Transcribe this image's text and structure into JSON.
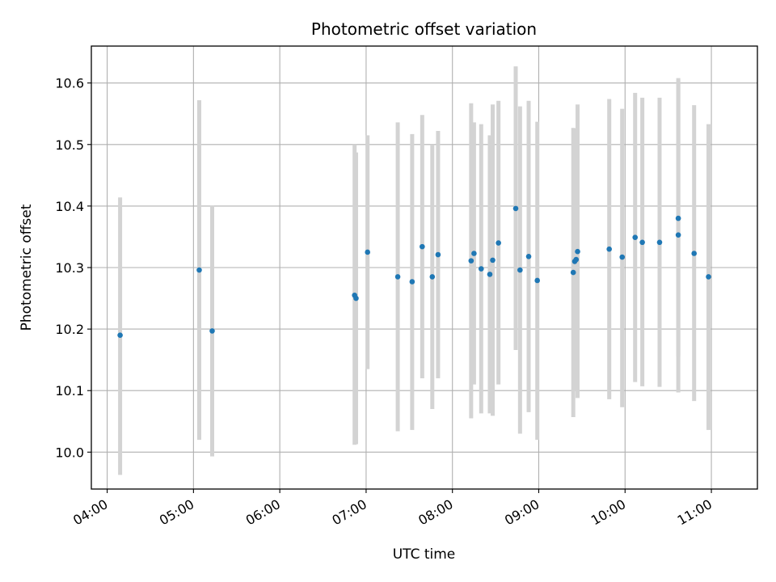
{
  "chart_data": {
    "type": "scatter",
    "title": "Photometric offset variation",
    "xlabel": "UTC time",
    "ylabel": "Photometric offset",
    "x_unit": "HH:MM",
    "xlim": [
      "03:49",
      "11:32"
    ],
    "ylim": [
      9.94,
      10.66
    ],
    "xticks": [
      "04:00",
      "05:00",
      "06:00",
      "07:00",
      "08:00",
      "09:00",
      "10:00",
      "11:00"
    ],
    "yticks": [
      10.0,
      10.1,
      10.2,
      10.3,
      10.4,
      10.5,
      10.6
    ],
    "grid": true,
    "legend": "none",
    "colors": {
      "point": "#1f77b4",
      "errorbar": "#d3d3d3",
      "grid": "#b0b0b0",
      "axes": "#000000"
    },
    "points": [
      {
        "x": "04:09",
        "y": 10.19,
        "ylow": 9.963,
        "yhigh": 10.414
      },
      {
        "x": "05:04",
        "y": 10.296,
        "ylow": 10.02,
        "yhigh": 10.572
      },
      {
        "x": "05:13",
        "y": 10.197,
        "ylow": 9.993,
        "yhigh": 10.401
      },
      {
        "x": "06:52",
        "y": 10.255,
        "ylow": 10.012,
        "yhigh": 10.5
      },
      {
        "x": "06:53",
        "y": 10.25,
        "ylow": 10.013,
        "yhigh": 10.487
      },
      {
        "x": "07:01",
        "y": 10.325,
        "ylow": 10.135,
        "yhigh": 10.515
      },
      {
        "x": "07:22",
        "y": 10.285,
        "ylow": 10.034,
        "yhigh": 10.536
      },
      {
        "x": "07:32",
        "y": 10.277,
        "ylow": 10.036,
        "yhigh": 10.517
      },
      {
        "x": "07:39",
        "y": 10.334,
        "ylow": 10.12,
        "yhigh": 10.548
      },
      {
        "x": "07:46",
        "y": 10.285,
        "ylow": 10.07,
        "yhigh": 10.5
      },
      {
        "x": "07:50",
        "y": 10.321,
        "ylow": 10.12,
        "yhigh": 10.522
      },
      {
        "x": "08:13",
        "y": 10.311,
        "ylow": 10.055,
        "yhigh": 10.567
      },
      {
        "x": "08:15",
        "y": 10.323,
        "ylow": 10.11,
        "yhigh": 10.536
      },
      {
        "x": "08:20",
        "y": 10.298,
        "ylow": 10.063,
        "yhigh": 10.533
      },
      {
        "x": "08:26",
        "y": 10.289,
        "ylow": 10.063,
        "yhigh": 10.515
      },
      {
        "x": "08:28",
        "y": 10.312,
        "ylow": 10.059,
        "yhigh": 10.565
      },
      {
        "x": "08:32",
        "y": 10.34,
        "ylow": 10.11,
        "yhigh": 10.571
      },
      {
        "x": "08:44",
        "y": 10.396,
        "ylow": 10.166,
        "yhigh": 10.627
      },
      {
        "x": "08:47",
        "y": 10.296,
        "ylow": 10.03,
        "yhigh": 10.562
      },
      {
        "x": "08:53",
        "y": 10.318,
        "ylow": 10.065,
        "yhigh": 10.571
      },
      {
        "x": "08:59",
        "y": 10.279,
        "ylow": 10.02,
        "yhigh": 10.537
      },
      {
        "x": "09:24",
        "y": 10.292,
        "ylow": 10.057,
        "yhigh": 10.527
      },
      {
        "x": "09:25",
        "y": 10.31,
        "ylow": 10.1,
        "yhigh": 10.52
      },
      {
        "x": "09:26",
        "y": 10.313,
        "ylow": 10.1,
        "yhigh": 10.526
      },
      {
        "x": "09:27",
        "y": 10.326,
        "ylow": 10.088,
        "yhigh": 10.565
      },
      {
        "x": "09:49",
        "y": 10.33,
        "ylow": 10.086,
        "yhigh": 10.574
      },
      {
        "x": "09:58",
        "y": 10.317,
        "ylow": 10.073,
        "yhigh": 10.558
      },
      {
        "x": "10:07",
        "y": 10.349,
        "ylow": 10.114,
        "yhigh": 10.584
      },
      {
        "x": "10:12",
        "y": 10.341,
        "ylow": 10.107,
        "yhigh": 10.576
      },
      {
        "x": "10:24",
        "y": 10.341,
        "ylow": 10.106,
        "yhigh": 10.576
      },
      {
        "x": "10:37",
        "y": 10.353,
        "ylow": 10.097,
        "yhigh": 10.608
      },
      {
        "x": "10:37",
        "y": 10.38,
        "ylow": 10.156,
        "yhigh": 10.604
      },
      {
        "x": "10:48",
        "y": 10.323,
        "ylow": 10.083,
        "yhigh": 10.564
      },
      {
        "x": "10:58",
        "y": 10.285,
        "ylow": 10.036,
        "yhigh": 10.533
      }
    ]
  }
}
